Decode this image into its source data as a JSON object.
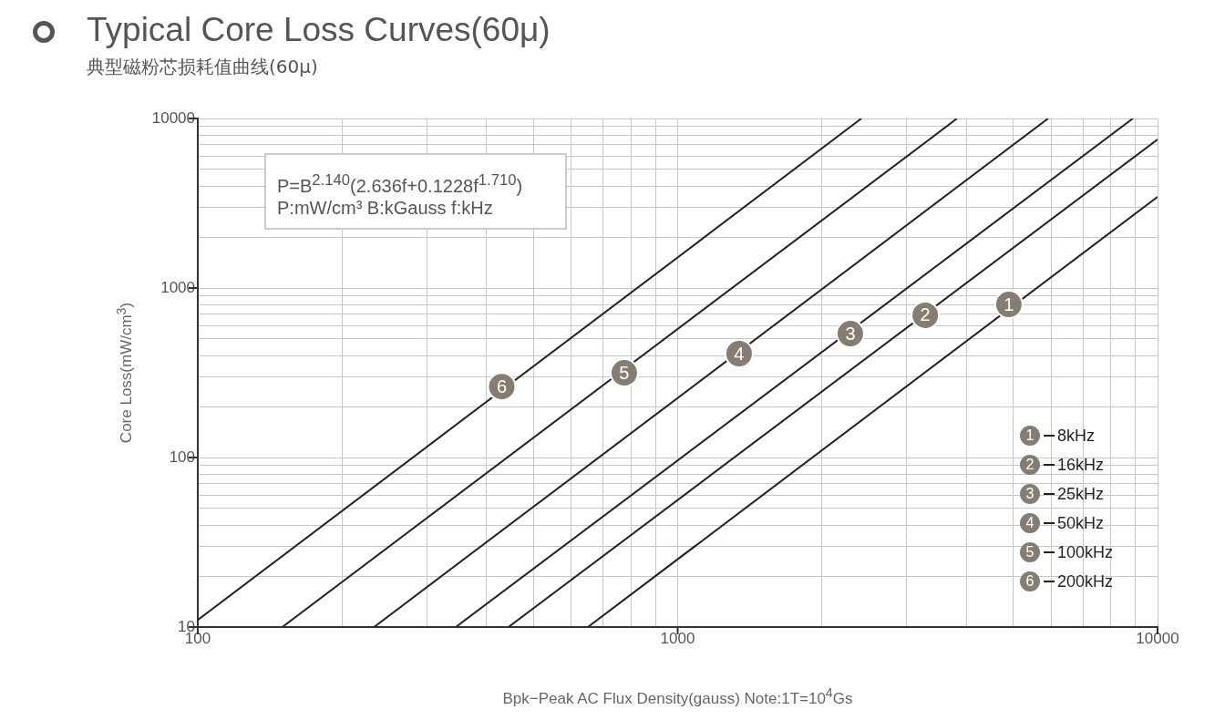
{
  "chart_data": {
    "type": "line",
    "title": "Typical Core Loss Curves(60μ)",
    "subtitle": "典型磁粉芯损耗值曲线(60μ)",
    "xlabel": "Bpk−Peak AC Flux Density(gauss) Note:1T=10$^{4}$Gs",
    "ylabel": "Core Loss(mW/cm$^{3}$)",
    "series": [
      {
        "name": "8kHz",
        "color": "#231f20",
        "x": [
          650,
          10000
        ],
        "values": [
          10,
          3450
        ]
      },
      {
        "name": "16kHz",
        "color": "#231f20",
        "x": [
          444,
          10000
        ],
        "values": [
          10,
          7520
        ]
      },
      {
        "name": "25kHz",
        "color": "#231f20",
        "x": [
          345,
          8885
        ],
        "values": [
          10,
          10000
        ]
      },
      {
        "name": "50kHz",
        "color": "#231f20",
        "x": [
          233,
          5916
        ],
        "values": [
          10,
          10000
        ]
      },
      {
        "name": "100kHz",
        "color": "#231f20",
        "x": [
          150,
          3821
        ],
        "values": [
          10,
          10000
        ]
      },
      {
        "name": "200kHz",
        "color": "#231f20",
        "x": [
          100,
          2415
        ],
        "values": [
          11,
          10000
        ]
      }
    ],
    "annotations": [
      "P=B$^{2.140}$(2.636f+0.1228f$^{1.710}$)",
      "P:mW/cm³ B:kGauss f:kHz",
      {
        "text": "1",
        "x": 4900,
        "y": 800
      },
      {
        "text": "2",
        "x": 3280,
        "y": 690
      },
      {
        "text": "3",
        "x": 2290,
        "y": 538
      },
      {
        "text": "4",
        "x": 1343,
        "y": 410
      },
      {
        "text": "5",
        "x": 774,
        "y": 316
      },
      {
        "text": "6",
        "x": 430,
        "y": 262
      }
    ],
    "log": "xy",
    "xlim": [
      100,
      10000
    ],
    "ylim": [
      10,
      10000
    ],
    "xticks": [
      100,
      {
        "value": 200,
        "label": null
      },
      {
        "value": 300,
        "label": null
      },
      {
        "value": 400,
        "label": null
      },
      {
        "value": 500,
        "label": null
      },
      {
        "value": 600,
        "label": null
      },
      {
        "value": 700,
        "label": null
      },
      {
        "value": 800,
        "label": null
      },
      {
        "value": 900,
        "label": null
      },
      1000,
      {
        "value": 2000,
        "label": null
      },
      {
        "value": 3000,
        "label": null
      },
      {
        "value": 4000,
        "label": null
      },
      {
        "value": 5000,
        "label": null
      },
      {
        "value": 6000,
        "label": null
      },
      {
        "value": 7000,
        "label": null
      },
      {
        "value": 8000,
        "label": null
      },
      {
        "value": 9000,
        "label": null
      },
      10000
    ],
    "yticks": [
      10,
      {
        "value": 20,
        "label": null
      },
      {
        "value": 30,
        "label": null
      },
      {
        "value": 40,
        "label": null
      },
      {
        "value": 50,
        "label": null
      },
      {
        "value": 60,
        "label": null
      },
      {
        "value": 70,
        "label": null
      },
      {
        "value": 80,
        "label": null
      },
      {
        "value": 90,
        "label": null
      },
      100,
      {
        "value": 200,
        "label": null
      },
      {
        "value": 300,
        "label": null
      },
      {
        "value": 400,
        "label": null
      },
      {
        "value": 500,
        "label": null
      },
      {
        "value": 600,
        "label": null
      },
      {
        "value": 700,
        "label": null
      },
      {
        "value": 800,
        "label": null
      },
      {
        "value": 900,
        "label": null
      },
      1000,
      {
        "value": 2000,
        "label": null
      },
      {
        "value": 3000,
        "label": null
      },
      {
        "value": 4000,
        "label": null
      },
      {
        "value": 5000,
        "label": null
      },
      {
        "value": 6000,
        "label": null
      },
      {
        "value": 7000,
        "label": null
      },
      {
        "value": 8000,
        "label": null
      },
      {
        "value": 9000,
        "label": null
      },
      10000
    ],
    "grid": true,
    "legend": "bottom right",
    "marker": "none",
    "line_style": "solid"
  }
}
